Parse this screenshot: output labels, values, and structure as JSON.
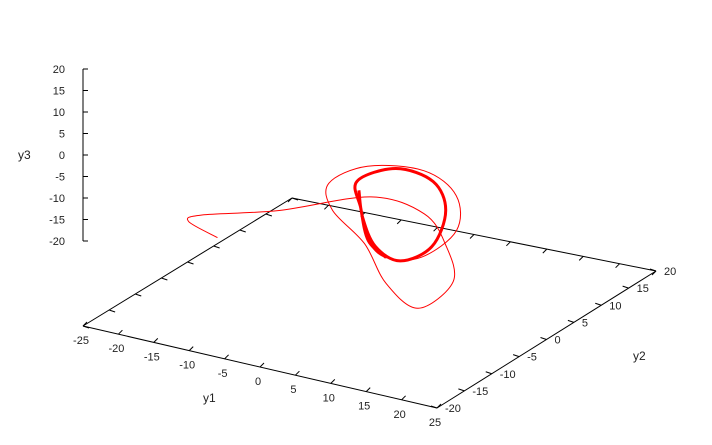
{
  "chart_data": {
    "type": "line",
    "title": "",
    "xlabel": "y1",
    "ylabel": "y2",
    "zlabel": "y3",
    "xlim": [
      -25,
      25
    ],
    "ylim": [
      -20,
      20
    ],
    "zlim": [
      -20,
      20
    ],
    "x_ticks": [
      "-25",
      "-20",
      "-15",
      "-10",
      "-5",
      "0",
      "5",
      "10",
      "15",
      "20",
      "25"
    ],
    "y_ticks": [
      "-20",
      "-15",
      "-10",
      "-5",
      "0",
      "5",
      "10",
      "15",
      "20"
    ],
    "z_ticks": [
      "-20",
      "-15",
      "-10",
      "-5",
      "0",
      "5",
      "10",
      "15",
      "20"
    ],
    "grid": false,
    "series": [
      {
        "color": "#ff0000",
        "description_points": [
          [
            -6,
            -20,
            12
          ],
          [
            -16,
            -12,
            6
          ],
          [
            -20,
            -4,
            0
          ],
          [
            -15,
            4,
            -3
          ],
          [
            -5,
            8,
            1
          ],
          [
            4,
            6,
            2
          ],
          [
            10,
            2,
            0
          ],
          [
            14,
            -2,
            -4
          ],
          [
            12,
            -6,
            -8
          ],
          [
            6,
            -4,
            -6
          ],
          [
            0,
            0,
            -2
          ],
          [
            -6,
            2,
            2
          ],
          [
            -8,
            4,
            6
          ],
          [
            -4,
            6,
            10
          ],
          [
            4,
            6,
            12
          ],
          [
            10,
            4,
            10
          ],
          [
            13,
            0,
            6
          ],
          [
            11,
            -4,
            2
          ],
          [
            6,
            -4,
            0
          ],
          [
            2,
            -2,
            1
          ],
          [
            -2,
            2,
            4
          ],
          [
            -4,
            4,
            8
          ],
          [
            0,
            6,
            11
          ],
          [
            6,
            5,
            11
          ],
          [
            10,
            2,
            8
          ],
          [
            11,
            -2,
            3
          ],
          [
            8,
            -4,
            0
          ],
          [
            3,
            -2,
            0
          ],
          [
            -1,
            1,
            3
          ],
          [
            -3,
            3,
            7
          ]
        ]
      }
    ]
  }
}
